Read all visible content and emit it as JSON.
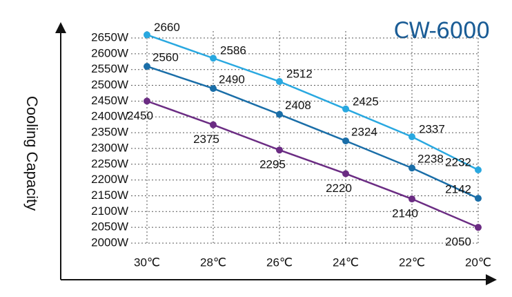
{
  "chart_data": {
    "type": "line",
    "title": "CW-6000",
    "y_label": "Cooling Capacity",
    "categories": [
      "30℃",
      "28℃",
      "26℃",
      "24℃",
      "22℃",
      "20℃"
    ],
    "series": [
      {
        "color": "#29a8e0",
        "values": [
          2660,
          2586,
          2512,
          2425,
          2337,
          2232
        ]
      },
      {
        "color": "#1a6ea8",
        "values": [
          2560,
          2490,
          2408,
          2324,
          2238,
          2142
        ]
      },
      {
        "color": "#6b2c83",
        "values": [
          2450,
          2375,
          2295,
          2220,
          2140,
          2050
        ]
      }
    ],
    "ylim": [
      2000,
      2650
    ],
    "yticks": [
      {
        "value": 2000,
        "label": "2000W"
      },
      {
        "value": 2050,
        "label": "2050W"
      },
      {
        "value": 2100,
        "label": "2100W"
      },
      {
        "value": 2150,
        "label": "2150W"
      },
      {
        "value": 2200,
        "label": "2200W"
      },
      {
        "value": 2250,
        "label": "2250W"
      },
      {
        "value": 2300,
        "label": "2300W"
      },
      {
        "value": 2350,
        "label": "2350W"
      },
      {
        "value": 2400,
        "label": "2400W"
      },
      {
        "value": 2450,
        "label": "2450W"
      },
      {
        "value": 2500,
        "label": "2500W"
      },
      {
        "value": 2550,
        "label": "2550W"
      },
      {
        "value": 2600,
        "label": "2600W"
      },
      {
        "value": 2650,
        "label": "2650W"
      }
    ],
    "grid": true
  }
}
